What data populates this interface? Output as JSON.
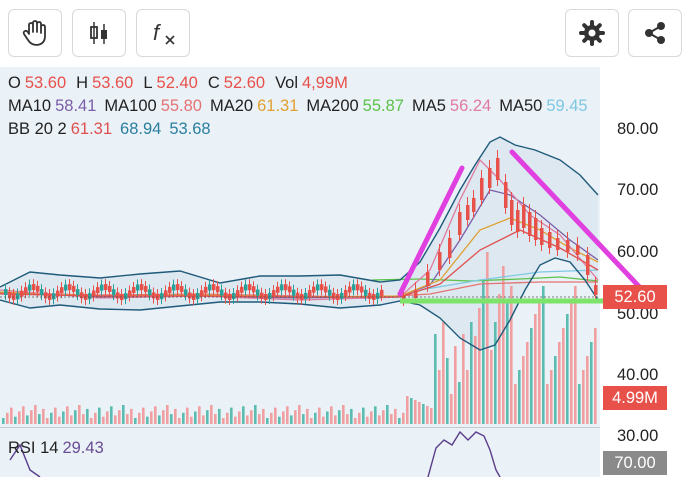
{
  "toolbar": {
    "left": [
      {
        "name": "hand-tool-icon"
      },
      {
        "name": "candlestick-icon"
      },
      {
        "name": "formula-icon",
        "text": "f"
      }
    ],
    "right": [
      {
        "name": "gear-icon"
      },
      {
        "name": "share-icon"
      }
    ]
  },
  "legend": {
    "ohlc": {
      "o_label": "O",
      "o": "53.60",
      "h_label": "H",
      "h": "53.60",
      "l_label": "L",
      "l": "52.40",
      "c_label": "C",
      "c": "52.60",
      "vol_label": "Vol",
      "vol": "4,99M"
    },
    "ma": [
      {
        "label": "MA10",
        "value": "58.41",
        "color": "#7b5ea7"
      },
      {
        "label": "MA100",
        "value": "55.80",
        "color": "#e57373"
      },
      {
        "label": "MA20",
        "value": "61.31",
        "color": "#e0a030"
      },
      {
        "label": "MA200",
        "value": "55.87",
        "color": "#5cc24a"
      },
      {
        "label": "MA5",
        "value": "56.24",
        "color": "#e07aa0"
      },
      {
        "label": "MA50",
        "value": "59.45",
        "color": "#7ec8e3"
      }
    ],
    "bb": {
      "label": "BB 20 2",
      "v1": "61.31",
      "v2": "68.94",
      "v3": "53.68",
      "c1": "#e05050",
      "c2": "#2a7f9e",
      "c3": "#2a7f9e"
    }
  },
  "price_axis": {
    "labels": [
      "80.00",
      "70.00",
      "60.00",
      "50.00",
      "40.00",
      "30.00"
    ]
  },
  "last_price_badge": {
    "value": "52.60",
    "color": "#e8504a"
  },
  "volume_badge": {
    "value": "4.99M",
    "color": "#e8504a"
  },
  "rsi": {
    "label": "RSI 14",
    "value": "29.43",
    "value_color": "#6a4c93",
    "badge": "70.00",
    "badge_color": "#8a8a8a"
  },
  "colors": {
    "up": "#e8504a",
    "down": "#2aa198",
    "bb": "#1f5a7a",
    "annotation": "#e040e0",
    "support": "#7de36a"
  }
}
